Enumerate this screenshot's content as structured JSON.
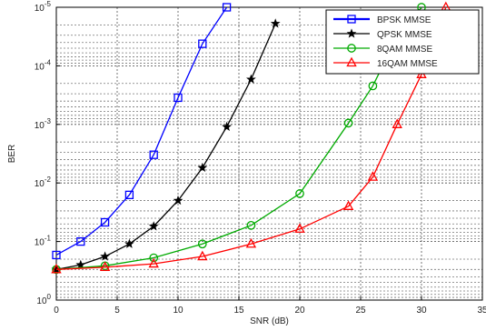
{
  "chart_data": {
    "type": "line",
    "xlabel": "SNR (dB)",
    "ylabel": "BER",
    "xlim": [
      0,
      35
    ],
    "ylim_log10": [
      -5,
      0
    ],
    "y_scale": "log",
    "grid": true,
    "legend_position": "top-right",
    "x_ticks": [
      0,
      5,
      10,
      15,
      20,
      25,
      30,
      35
    ],
    "x_tick_labels": [
      "0",
      "5",
      "10",
      "15",
      "20",
      "25",
      "30",
      "35"
    ],
    "y_ticks": [
      0,
      -1,
      -2,
      -3,
      -4,
      -5
    ],
    "y_tick_labels": [
      "10^0",
      "10^-1",
      "10^-2",
      "10^-3",
      "10^-4",
      "10^-5"
    ],
    "series": [
      {
        "name": "BPSK MMSE",
        "color": "#0000ff",
        "marker": "square",
        "x": [
          0,
          2,
          4,
          6,
          8,
          10,
          12,
          14
        ],
        "y": [
          0.17,
          0.1,
          0.047,
          0.016,
          0.0033,
          0.00035,
          4.2e-05,
          1e-05
        ]
      },
      {
        "name": "QPSK MMSE",
        "color": "#000000",
        "marker": "star",
        "x": [
          0,
          2,
          4,
          6,
          8,
          10,
          12,
          14,
          16,
          18
        ],
        "y": [
          0.3,
          0.25,
          0.18,
          0.11,
          0.055,
          0.02,
          0.0055,
          0.0011,
          0.00017,
          1.9e-05
        ]
      },
      {
        "name": "8QAM MMSE",
        "color": "#00aa00",
        "marker": "circle",
        "x": [
          0,
          4,
          8,
          12,
          16,
          20,
          24,
          26,
          28,
          30
        ],
        "y": [
          0.3,
          0.26,
          0.19,
          0.11,
          0.053,
          0.0152,
          0.00095,
          0.00022,
          3.2e-05,
          1e-05
        ]
      },
      {
        "name": "16QAM MMSE",
        "color": "#ff0000",
        "marker": "triangle",
        "x": [
          0,
          4,
          8,
          12,
          16,
          20,
          24,
          26,
          28,
          30,
          32
        ],
        "y": [
          0.3,
          0.275,
          0.24,
          0.18,
          0.11,
          0.061,
          0.025,
          0.0079,
          0.001,
          0.00014,
          1e-05
        ]
      }
    ]
  }
}
